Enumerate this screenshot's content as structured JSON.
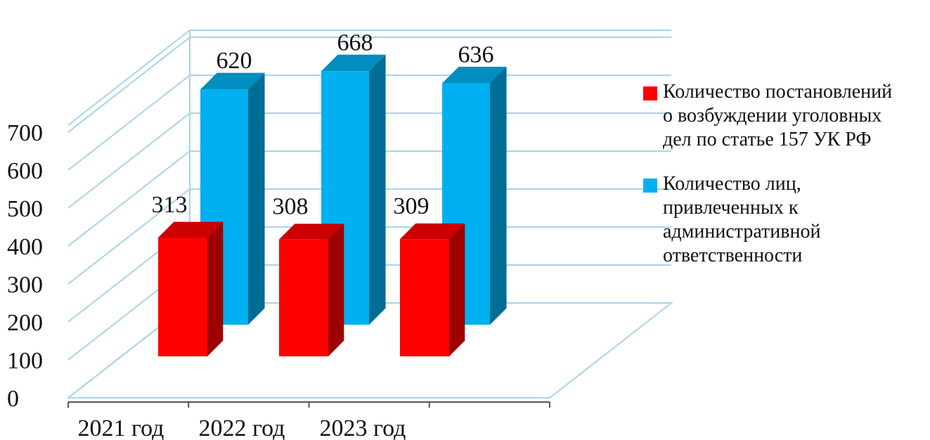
{
  "chart_data": {
    "type": "bar",
    "title": "",
    "categories": [
      "2021 год",
      "2022 год",
      "2023 год"
    ],
    "series": [
      {
        "name": "Количество постановлений о возбуждении уголовных дел по статье 157 УК РФ",
        "color": "#ff0000",
        "values": [
          313,
          308,
          309
        ]
      },
      {
        "name": "Количество лиц, привлеченных к административной ответственности",
        "color": "#00b0f0",
        "values": [
          620,
          668,
          636
        ]
      }
    ],
    "y_ticks": [
      "0",
      "100",
      "200",
      "300",
      "400",
      "500",
      "600",
      "700"
    ],
    "ylim": [
      0,
      700
    ],
    "grid": true,
    "legend_position": "right",
    "style": "3d-clustered-column"
  },
  "legend": {
    "items": [
      {
        "lines": [
          "Количество постановлений",
          "о возбуждении уголовных",
          "дел по статье 157 УК РФ"
        ],
        "color": "#ff0000"
      },
      {
        "lines": [
          "Количество лиц,",
          "привлеченных к",
          "административной",
          "ответственности"
        ],
        "color": "#00b0f0"
      }
    ]
  }
}
